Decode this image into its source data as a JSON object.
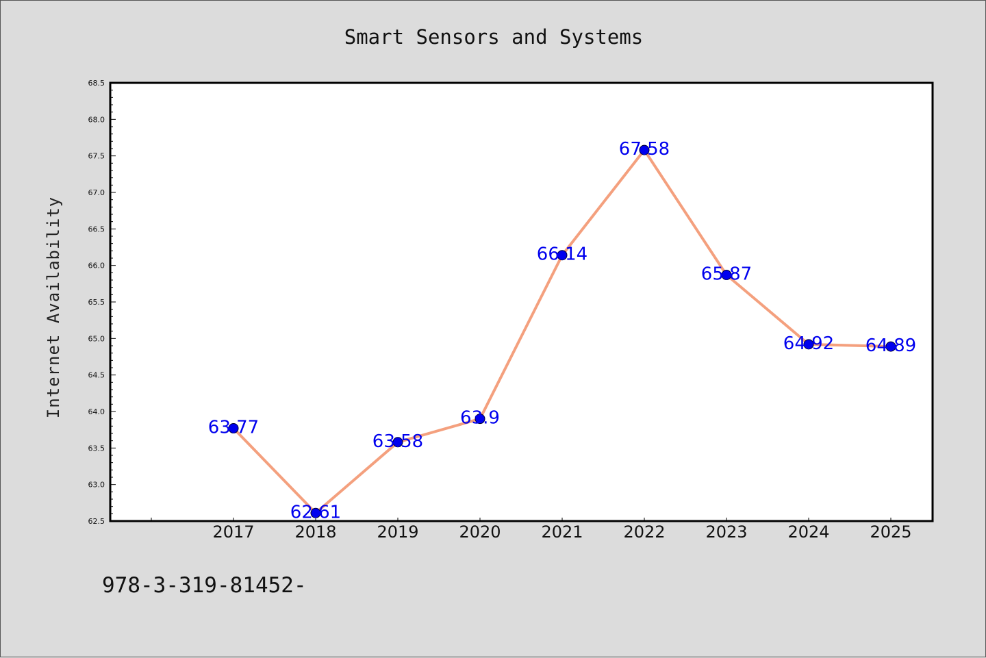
{
  "chart_data": {
    "type": "line",
    "title": "Smart Sensors and Systems",
    "xlabel": "",
    "ylabel": "Internet Availability",
    "categories": [
      "2017",
      "2018",
      "2019",
      "2020",
      "2021",
      "2022",
      "2023",
      "2024",
      "2025"
    ],
    "series": [
      {
        "values": [
          63.77,
          62.61,
          63.58,
          63.9,
          66.14,
          67.58,
          65.87,
          64.92,
          64.89
        ],
        "data_labels": [
          "63.77",
          "62.61",
          "63.58",
          "63.9",
          "66.14",
          "67.58",
          "65.87",
          "64.92",
          "64.89"
        ],
        "line_color": "#f4a07e",
        "marker_color": "#0000ee"
      }
    ],
    "ylim": [
      62.5,
      68.5
    ],
    "yticks": [
      "62.5",
      "63.0",
      "63.5",
      "64.0",
      "64.5",
      "65.0",
      "65.5",
      "66.0",
      "66.5",
      "67.0",
      "67.5",
      "68.0",
      "68.5"
    ],
    "grid": false,
    "legend": "none"
  },
  "footer": {
    "text": "978-3-319-81452-"
  }
}
